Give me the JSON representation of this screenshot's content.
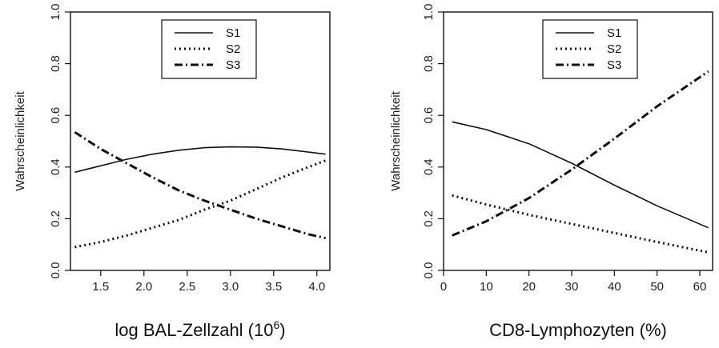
{
  "chart_data": [
    {
      "type": "line",
      "xlabel": "log BAL-Zellzahl (10",
      "xlabel_sup": "6",
      "xlabel_end": ")",
      "ylabel": "Wahrscheinlichkeit",
      "xlim": [
        1.15,
        4.15
      ],
      "ylim": [
        0.0,
        1.0
      ],
      "xticks": [
        1.5,
        2.0,
        2.5,
        3.0,
        3.5,
        4.0
      ],
      "xtick_labels": [
        "1.5",
        "2.0",
        "2.5",
        "3.0",
        "3.5",
        "4.0"
      ],
      "yticks": [
        0.0,
        0.2,
        0.4,
        0.6,
        0.8,
        1.0
      ],
      "ytick_labels": [
        "0.0",
        "0.2",
        "0.4",
        "0.6",
        "0.8",
        "1.0"
      ],
      "legend_position": "top-center",
      "series": [
        {
          "name": "S1",
          "style": "solid",
          "x": [
            1.2,
            1.5,
            1.8,
            2.1,
            2.4,
            2.7,
            3.0,
            3.3,
            3.6,
            3.9,
            4.1
          ],
          "y": [
            0.38,
            0.405,
            0.43,
            0.45,
            0.465,
            0.475,
            0.478,
            0.477,
            0.47,
            0.458,
            0.45
          ]
        },
        {
          "name": "S2",
          "style": "dotted",
          "x": [
            1.2,
            1.5,
            1.8,
            2.1,
            2.4,
            2.7,
            3.0,
            3.3,
            3.6,
            3.9,
            4.1
          ],
          "y": [
            0.09,
            0.11,
            0.135,
            0.165,
            0.195,
            0.235,
            0.27,
            0.315,
            0.36,
            0.4,
            0.425
          ]
        },
        {
          "name": "S3",
          "style": "dashdot",
          "x": [
            1.2,
            1.5,
            1.8,
            2.1,
            2.4,
            2.7,
            3.0,
            3.3,
            3.6,
            3.9,
            4.1
          ],
          "y": [
            0.535,
            0.47,
            0.415,
            0.36,
            0.31,
            0.27,
            0.235,
            0.2,
            0.17,
            0.14,
            0.125
          ]
        }
      ]
    },
    {
      "type": "line",
      "xlabel": "CD8-Lymphozyten (%)",
      "ylabel": "Wahrscheinlichkeit",
      "xlim": [
        0,
        63
      ],
      "ylim": [
        0.0,
        1.0
      ],
      "xticks": [
        0,
        10,
        20,
        30,
        40,
        50,
        60
      ],
      "xtick_labels": [
        "0",
        "10",
        "20",
        "30",
        "40",
        "50",
        "60"
      ],
      "yticks": [
        0.0,
        0.2,
        0.4,
        0.6,
        0.8,
        1.0
      ],
      "ytick_labels": [
        "0.0",
        "0.2",
        "0.4",
        "0.6",
        "0.8",
        "1.0"
      ],
      "legend_position": "top-center",
      "series": [
        {
          "name": "S1",
          "style": "solid",
          "x": [
            2,
            10,
            20,
            30,
            40,
            50,
            62
          ],
          "y": [
            0.575,
            0.545,
            0.49,
            0.415,
            0.33,
            0.25,
            0.165
          ]
        },
        {
          "name": "S2",
          "style": "dotted",
          "x": [
            2,
            10,
            20,
            30,
            40,
            50,
            62
          ],
          "y": [
            0.29,
            0.255,
            0.215,
            0.18,
            0.145,
            0.11,
            0.07
          ]
        },
        {
          "name": "S3",
          "style": "dashdot",
          "x": [
            2,
            10,
            20,
            30,
            40,
            50,
            62
          ],
          "y": [
            0.135,
            0.19,
            0.28,
            0.39,
            0.51,
            0.635,
            0.77
          ]
        }
      ]
    }
  ]
}
